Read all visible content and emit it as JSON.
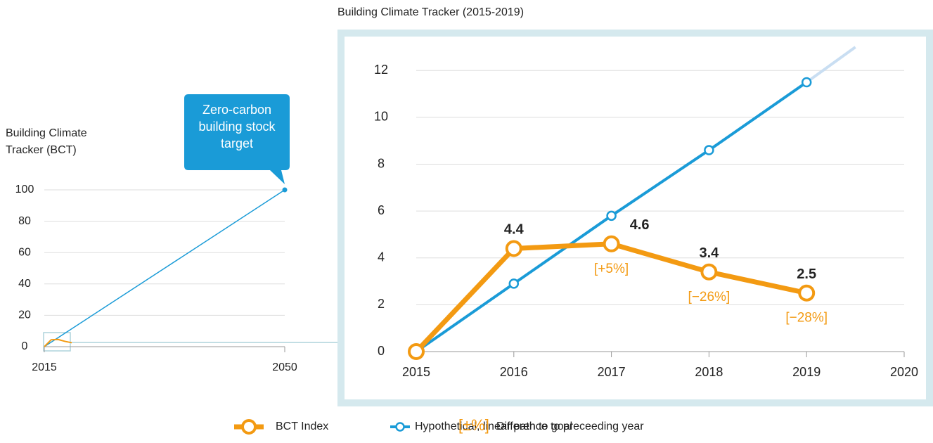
{
  "chart_data": [
    {
      "type": "line",
      "y_label": "Building Climate Tracker (BCT)",
      "annotation": "Zero-carbon building stock target",
      "x": [
        2015,
        2050
      ],
      "series": [
        {
          "name": "Hypothetical, linear path to goal",
          "color": "#1a9bd7",
          "values": [
            0,
            100
          ]
        }
      ],
      "xlim": [
        2015,
        2050
      ],
      "xticks": [
        2015,
        2050
      ],
      "ylim": [
        0,
        100
      ],
      "yticks": [
        0,
        20,
        40,
        60,
        80,
        100
      ],
      "grid": true
    },
    {
      "type": "line",
      "title": "Building Climate Tracker (2015-2019)",
      "x": [
        2015,
        2016,
        2017,
        2018,
        2019
      ],
      "series": [
        {
          "name": "BCT Index",
          "color": "#f39a12",
          "values": [
            0,
            4.4,
            4.6,
            3.4,
            2.5
          ],
          "value_labels": [
            null,
            "4.4",
            "4.6",
            "3.4",
            "2.5"
          ],
          "change_labels": [
            null,
            null,
            "[+5%]",
            "[−26%]",
            "[−28%]"
          ]
        },
        {
          "name": "Hypothetical, linear path to goal",
          "color": "#1a9bd7",
          "values": [
            0,
            2.9,
            5.8,
            8.6,
            11.5
          ],
          "extension": {
            "x": 2019.5,
            "value": 13,
            "color": "#c9def2"
          }
        }
      ],
      "xlim": [
        2015,
        2020
      ],
      "xticks": [
        2015,
        2016,
        2017,
        2018,
        2019,
        2020
      ],
      "ylim": [
        0,
        13
      ],
      "yticks": [
        0,
        2,
        4,
        6,
        8,
        10,
        12
      ],
      "grid": true,
      "legend_note": {
        "symbol": "[±%]",
        "label": "Difference to preceeding year"
      }
    }
  ]
}
